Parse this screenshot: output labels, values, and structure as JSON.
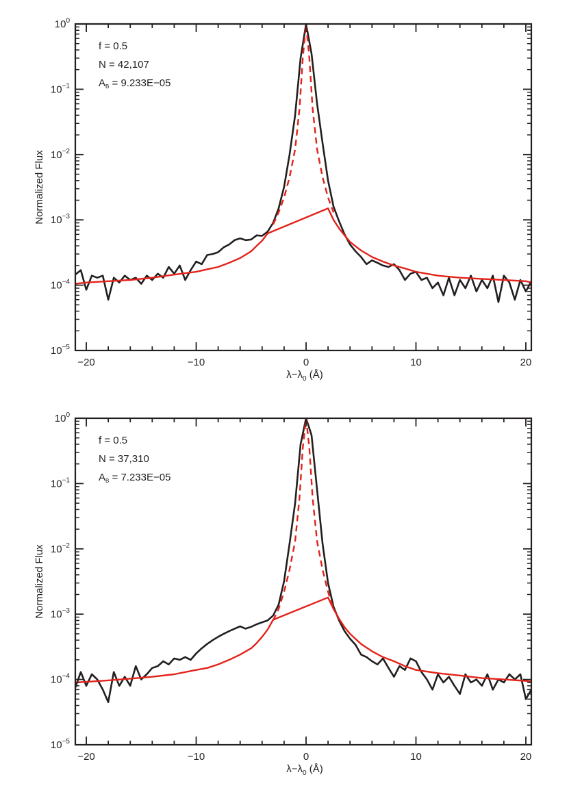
{
  "figure": {
    "background": "#ffffff",
    "colors": {
      "axes": "#231f20",
      "observed": "#231f20",
      "model": "#e2231a"
    }
  },
  "chart_data": [
    {
      "type": "line",
      "title": "",
      "xlabel": "λ−λ",
      "xlabel_subscript": "0",
      "xlabel_unit": "(Å)",
      "ylabel": "Normalized Flux",
      "xlim": [
        -21,
        20.5
      ],
      "ylim": [
        1e-05,
        1
      ],
      "yscale": "log",
      "xticks": [
        -20,
        -10,
        0,
        10,
        20
      ],
      "xtick_labels": [
        "−20",
        "−10",
        "0",
        "10",
        "20"
      ],
      "yticks": [
        1e-05,
        0.0001,
        0.001,
        0.01,
        0.1,
        1
      ],
      "ytick_labels": [
        {
          "base": "10",
          "exp": "−5"
        },
        {
          "base": "10",
          "exp": "−4"
        },
        {
          "base": "10",
          "exp": "−3"
        },
        {
          "base": "10",
          "exp": "−2"
        },
        {
          "base": "10",
          "exp": "−1"
        },
        {
          "base": "10",
          "exp": "0"
        }
      ],
      "grid": false,
      "annotations": [
        {
          "text": "f = 0.5"
        },
        {
          "text": "N = 42,107"
        },
        {
          "prefix": "A",
          "sub": "B",
          "text": " = 9.233E−05"
        }
      ],
      "series": [
        {
          "style": "solid",
          "color": "#231f20",
          "x": [
            -21,
            -20.5,
            -20,
            -19.5,
            -19,
            -18.5,
            -18,
            -17.5,
            -17,
            -16.5,
            -16,
            -15.5,
            -15,
            -14.5,
            -14,
            -13.5,
            -13,
            -12.5,
            -12,
            -11.5,
            -11,
            -10.5,
            -10,
            -9.5,
            -9,
            -8.5,
            -8,
            -7.5,
            -7,
            -6.5,
            -6,
            -5.5,
            -5,
            -4.5,
            -4,
            -3.5,
            -3,
            -2.5,
            -2,
            -1.5,
            -1,
            -0.5,
            0,
            0.5,
            1,
            1.5,
            2,
            2.5,
            3,
            3.5,
            4,
            4.5,
            5,
            5.5,
            6,
            6.5,
            7,
            7.5,
            8,
            8.5,
            9,
            9.5,
            10,
            10.5,
            11,
            11.5,
            12,
            12.5,
            13,
            13.5,
            14,
            14.5,
            15,
            15.5,
            16,
            16.5,
            17,
            17.5,
            18,
            18.5,
            19,
            19.5,
            20,
            20.5
          ],
          "y": [
            0.000145,
            0.00017,
            8.5e-05,
            0.00014,
            0.00013,
            0.00014,
            6e-05,
            0.00013,
            0.00011,
            0.00014,
            0.00012,
            0.00013,
            0.000105,
            0.00014,
            0.00012,
            0.00015,
            0.00013,
            0.00019,
            0.00015,
            0.0002,
            0.00012,
            0.00017,
            0.00023,
            0.00021,
            0.00029,
            0.0003,
            0.00032,
            0.00038,
            0.00042,
            0.00049,
            0.00052,
            0.00049,
            0.0005,
            0.00058,
            0.00057,
            0.00066,
            0.0009,
            0.0015,
            0.0032,
            0.01,
            0.04,
            0.3,
            1.0,
            0.35,
            0.06,
            0.015,
            0.004,
            0.0016,
            0.00095,
            0.0006,
            0.00042,
            0.00033,
            0.00027,
            0.00021,
            0.00024,
            0.00022,
            0.0002,
            0.00019,
            0.00021,
            0.00017,
            0.00012,
            0.00015,
            0.00016,
            0.00012,
            0.00013,
            9e-05,
            0.00011,
            7e-05,
            0.00013,
            7e-05,
            0.00012,
            9e-05,
            0.00014,
            8e-05,
            0.00012,
            9e-05,
            0.00014,
            5.5e-05,
            0.00014,
            0.00011,
            6e-05,
            0.00012,
            8e-05,
            0.000115
          ]
        },
        {
          "style": "dashed",
          "color": "#e2231a",
          "x": [
            -3,
            -2.5,
            -2,
            -1.5,
            -1,
            -0.6,
            -0.3,
            0,
            0.3,
            0.6,
            1,
            1.5,
            2,
            2.5
          ],
          "y": [
            0.00085,
            0.0013,
            0.0022,
            0.0045,
            0.012,
            0.05,
            0.3,
            1.0,
            0.3,
            0.05,
            0.012,
            0.0045,
            0.0022,
            0.0013
          ]
        },
        {
          "style": "solid",
          "color": "#e2231a",
          "x": [
            -21,
            -20,
            -18,
            -16,
            -14,
            -12,
            -10,
            -9,
            -8,
            -7,
            -6,
            -5,
            -4.5,
            -4,
            -3.5,
            2,
            2.5,
            3,
            3.5,
            4,
            5,
            6,
            7,
            8,
            9,
            10,
            12,
            14,
            16,
            18,
            20,
            20.5
          ],
          "y": [
            0.000105,
            0.00011,
            0.000115,
            0.00012,
            0.00013,
            0.000145,
            0.00016,
            0.000175,
            0.00019,
            0.00022,
            0.00026,
            0.00033,
            0.0004,
            0.00048,
            0.00062,
            0.0015,
            0.001,
            0.00074,
            0.00058,
            0.00046,
            0.00034,
            0.00027,
            0.00023,
            0.0002,
            0.00018,
            0.00016,
            0.00014,
            0.00013,
            0.000125,
            0.00012,
            0.000115,
            0.00011
          ]
        }
      ]
    },
    {
      "type": "line",
      "title": "",
      "xlabel": "λ−λ",
      "xlabel_subscript": "0",
      "xlabel_unit": "(Å)",
      "ylabel": "Normalized Flux",
      "xlim": [
        -21,
        20.5
      ],
      "ylim": [
        1e-05,
        1
      ],
      "yscale": "log",
      "xticks": [
        -20,
        -10,
        0,
        10,
        20
      ],
      "xtick_labels": [
        "−20",
        "−10",
        "0",
        "10",
        "20"
      ],
      "yticks": [
        1e-05,
        0.0001,
        0.001,
        0.01,
        0.1,
        1
      ],
      "ytick_labels": [
        {
          "base": "10",
          "exp": "−5"
        },
        {
          "base": "10",
          "exp": "−4"
        },
        {
          "base": "10",
          "exp": "−3"
        },
        {
          "base": "10",
          "exp": "−2"
        },
        {
          "base": "10",
          "exp": "−1"
        },
        {
          "base": "10",
          "exp": "0"
        }
      ],
      "grid": false,
      "annotations": [
        {
          "text": "f = 0.5"
        },
        {
          "text": "N = 37,310"
        },
        {
          "prefix": "A",
          "sub": "B",
          "text": " = 7.233E−05"
        }
      ],
      "series": [
        {
          "style": "solid",
          "color": "#231f20",
          "x": [
            -21,
            -20.5,
            -20,
            -19.5,
            -19,
            -18.5,
            -18,
            -17.5,
            -17,
            -16.5,
            -16,
            -15.5,
            -15,
            -14.5,
            -14,
            -13.5,
            -13,
            -12.5,
            -12,
            -11.5,
            -11,
            -10.5,
            -10,
            -9.5,
            -9,
            -8.5,
            -8,
            -7.5,
            -7,
            -6.5,
            -6,
            -5.5,
            -5,
            -4.5,
            -4,
            -3.5,
            -3,
            -2.5,
            -2,
            -1.5,
            -1,
            -0.5,
            0,
            0.5,
            1,
            1.5,
            2,
            2.5,
            3,
            3.5,
            4,
            4.5,
            5,
            5.5,
            6,
            6.5,
            7,
            7.5,
            8,
            8.5,
            9,
            9.5,
            10,
            10.5,
            11,
            11.5,
            12,
            12.5,
            13,
            13.5,
            14,
            14.5,
            15,
            15.5,
            16,
            16.5,
            17,
            17.5,
            18,
            18.5,
            19,
            19.5,
            20,
            20.5
          ],
          "y": [
            7.5e-05,
            0.00013,
            8e-05,
            0.00012,
            0.0001,
            7e-05,
            4.5e-05,
            0.00013,
            8e-05,
            0.00011,
            8e-05,
            0.00016,
            0.0001,
            0.00012,
            0.00015,
            0.00016,
            0.00019,
            0.00017,
            0.00021,
            0.0002,
            0.00022,
            0.0002,
            0.00025,
            0.0003,
            0.00035,
            0.0004,
            0.00045,
            0.0005,
            0.00055,
            0.0006,
            0.00065,
            0.0006,
            0.00064,
            0.0007,
            0.00075,
            0.0008,
            0.00095,
            0.0014,
            0.0032,
            0.012,
            0.05,
            0.4,
            1.0,
            0.55,
            0.08,
            0.012,
            0.003,
            0.0013,
            0.0008,
            0.00055,
            0.00042,
            0.00034,
            0.00024,
            0.00022,
            0.00019,
            0.00017,
            0.00021,
            0.00015,
            0.00011,
            0.00016,
            0.00014,
            0.00021,
            0.00019,
            0.00013,
            0.0001,
            7e-05,
            0.00012,
            9e-05,
            0.00011,
            8e-05,
            6e-05,
            0.00012,
            9e-05,
            0.0001,
            8e-05,
            0.00012,
            7e-05,
            0.0001,
            9e-05,
            0.00012,
            0.0001,
            0.00012,
            5e-05,
            7e-05
          ]
        },
        {
          "style": "dashed",
          "color": "#e2231a",
          "x": [
            -3,
            -2.5,
            -2,
            -1.5,
            -1,
            -0.6,
            -0.3,
            0,
            0.3,
            0.6,
            1,
            1.5,
            2,
            2.5
          ],
          "y": [
            0.0008,
            0.0012,
            0.0022,
            0.0048,
            0.013,
            0.06,
            0.35,
            1.0,
            0.35,
            0.06,
            0.013,
            0.0048,
            0.0022,
            0.0012
          ]
        },
        {
          "style": "solid",
          "color": "#e2231a",
          "x": [
            -21,
            -20,
            -18,
            -16,
            -14,
            -12,
            -10,
            -9,
            -8,
            -7,
            -6,
            -5,
            -4.5,
            -4,
            -3.5,
            -3,
            2,
            2.5,
            3,
            3.5,
            4,
            5,
            6,
            7,
            8,
            9,
            10,
            12,
            14,
            16,
            18,
            20,
            20.5
          ],
          "y": [
            9e-05,
            9.2e-05,
            9.7e-05,
            0.000103,
            0.00011,
            0.00012,
            0.00014,
            0.00015,
            0.00017,
            0.0002,
            0.00024,
            0.0003,
            0.00036,
            0.00045,
            0.00058,
            0.00082,
            0.0018,
            0.0012,
            0.00085,
            0.00063,
            0.0005,
            0.00035,
            0.00027,
            0.00022,
            0.00019,
            0.00016,
            0.00014,
            0.000125,
            0.000115,
            0.000105,
            0.0001,
            9.5e-05,
            9.3e-05
          ]
        }
      ]
    }
  ]
}
